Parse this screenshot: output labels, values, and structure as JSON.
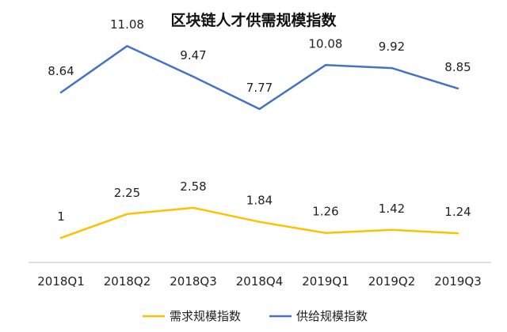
{
  "chart_data": {
    "type": "line",
    "title": "区块链人才供需规模指数",
    "categories": [
      "2018Q1",
      "2018Q2",
      "2018Q3",
      "2018Q4",
      "2019Q1",
      "2019Q2",
      "2019Q3"
    ],
    "series": [
      {
        "name": "需求规模指数",
        "color": "#ffc000",
        "values": [
          1,
          2.25,
          2.58,
          1.84,
          1.26,
          1.42,
          1.24
        ],
        "labels": [
          "1",
          "2.25",
          "2.58",
          "1.84",
          "1.26",
          "1.42",
          "1.24"
        ]
      },
      {
        "name": "供给规模指数",
        "color": "#4472c4",
        "values": [
          8.64,
          11.08,
          9.47,
          7.77,
          10.08,
          9.92,
          8.85
        ],
        "labels": [
          "8.64",
          "11.08",
          "9.47",
          "7.77",
          "10.08",
          "9.92",
          "8.85"
        ]
      }
    ],
    "ylim": [
      0,
      12.5
    ],
    "grid": false,
    "legend_position": "bottom"
  }
}
